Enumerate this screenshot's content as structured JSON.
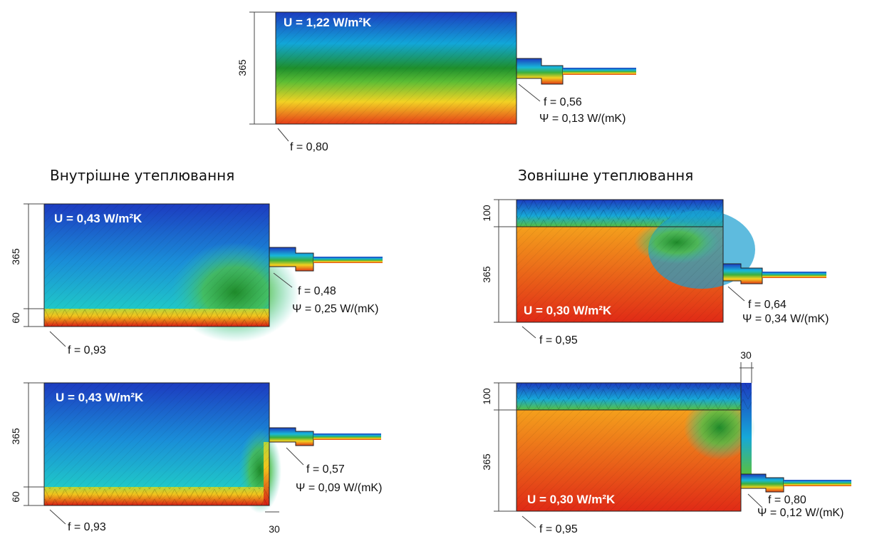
{
  "top": {
    "u": "U = 1,22 W/m²K",
    "dim": "365",
    "f_window": "f = 0,56",
    "psi": "Ψ = 0,13 W/(mK)",
    "f_corner": "f = 0,80"
  },
  "internal": {
    "title": "Внутрішне утеплювання",
    "panels": [
      {
        "u": "U = 0,43 W/m²K",
        "dims": [
          "365",
          "60"
        ],
        "f_window": "f = 0,48",
        "psi": "Ψ = 0,25 W/(mK)",
        "f_corner": "f = 0,93"
      },
      {
        "u": "U = 0,43 W/m²K",
        "dims": [
          "365",
          "60"
        ],
        "f_window": "f = 0,57",
        "psi": "Ψ = 0,09 W/(mK)",
        "f_corner": "f = 0,93",
        "gap": "30"
      }
    ]
  },
  "external": {
    "title": "Зовнішне утеплювання",
    "panels": [
      {
        "u": "U = 0,30 W/m²K",
        "dims": [
          "100",
          "365"
        ],
        "f_window": "f = 0,64",
        "psi": "Ψ = 0,34 W/(mK)",
        "f_corner": "f = 0,95"
      },
      {
        "u": "U = 0,30 W/m²K",
        "dims": [
          "100",
          "365"
        ],
        "f_window": "f = 0,80",
        "psi": "Ψ = 0,12 W/(mK)",
        "f_corner": "f = 0,95",
        "gap": "30"
      }
    ]
  }
}
